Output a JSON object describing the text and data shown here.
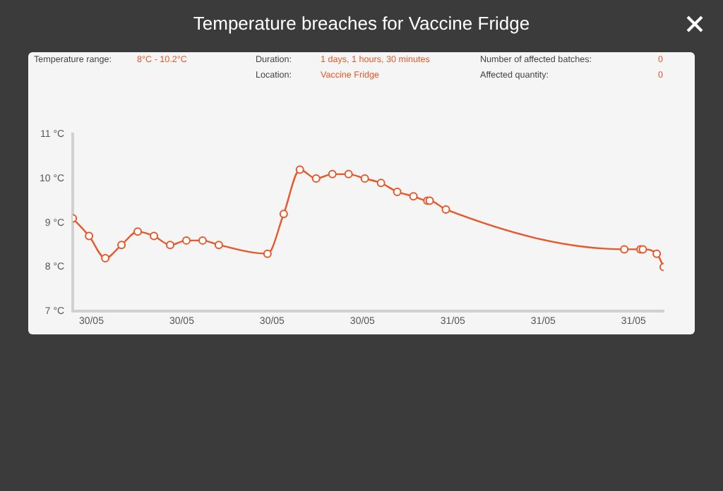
{
  "chart_data": {
    "type": "line",
    "title": "Temperature breaches for Vaccine Fridge",
    "annotations": [
      "Temperature range:",
      "8°C - 10.2°C",
      "Duration:",
      "1 days, 1 hours, 30 minutes",
      "Number of affected batches:",
      "0",
      "Location:",
      "Vaccine Fridge",
      "Affected quantity:",
      "0"
    ],
    "x": [
      "--05-30T09:30",
      "--05-30T10:12",
      "--05-30T10:54",
      "--05-30T11:36",
      "--05-30T12:18",
      "--05-30T13:00",
      "--05-30T13:42",
      "--05-30T14:24",
      "--05-30T15:06",
      "--05-30T15:48",
      "--05-30T17:54",
      "--05-30T18:36",
      "--05-30T19:18",
      "--05-30T20:00",
      "--05-30T20:42",
      "--05-30T21:24",
      "--05-30T22:06",
      "--05-30T22:48",
      "--05-30T23:30",
      "--05-31T00:12",
      "--05-31T00:48",
      "--05-31T00:54",
      "--05-31T01:36",
      "--05-31T09:18",
      "--05-31T10:00",
      "--05-31T10:06",
      "--05-31T10:42",
      "--05-31T11:00"
    ],
    "series": [
      {
        "color": "#e8572a",
        "values": [
          9.1,
          8.7,
          8.2,
          8.5,
          8.8,
          8.7,
          8.5,
          8.6,
          8.6,
          8.5,
          8.3,
          9.2,
          10.2,
          10.0,
          10.1,
          10.1,
          10.0,
          9.9,
          9.7,
          9.6,
          9.5,
          9.5,
          9.3,
          8.4,
          8.4,
          8.4,
          8.3,
          8.0
        ]
      }
    ],
    "xlim": [
      "--05-30T09:30",
      "--05-31T11:00"
    ],
    "xticks": [
      {
        "value": "--05-30T10:18",
        "label": "30/05"
      },
      {
        "value": "--05-30T14:12",
        "label": "30/05"
      },
      {
        "value": "--05-30T18:06",
        "label": "30/05"
      },
      {
        "value": "--05-30T22:00",
        "label": "30/05"
      },
      {
        "value": "--05-31T01:54",
        "label": "31/05"
      },
      {
        "value": "--05-31T05:48",
        "label": "31/05"
      },
      {
        "value": "--05-31T09:42",
        "label": "31/05"
      }
    ],
    "ylim": [
      7,
      11
    ],
    "yticks": [
      {
        "value": 7,
        "label": "7 °C"
      },
      {
        "value": 8,
        "label": "8 °C"
      },
      {
        "value": 9,
        "label": "9 °C"
      },
      {
        "value": 10,
        "label": "10 °C"
      },
      {
        "value": 11,
        "label": "11 °C"
      }
    ],
    "grid": false,
    "legend": false,
    "marker": "circle",
    "line_style": "solid"
  }
}
